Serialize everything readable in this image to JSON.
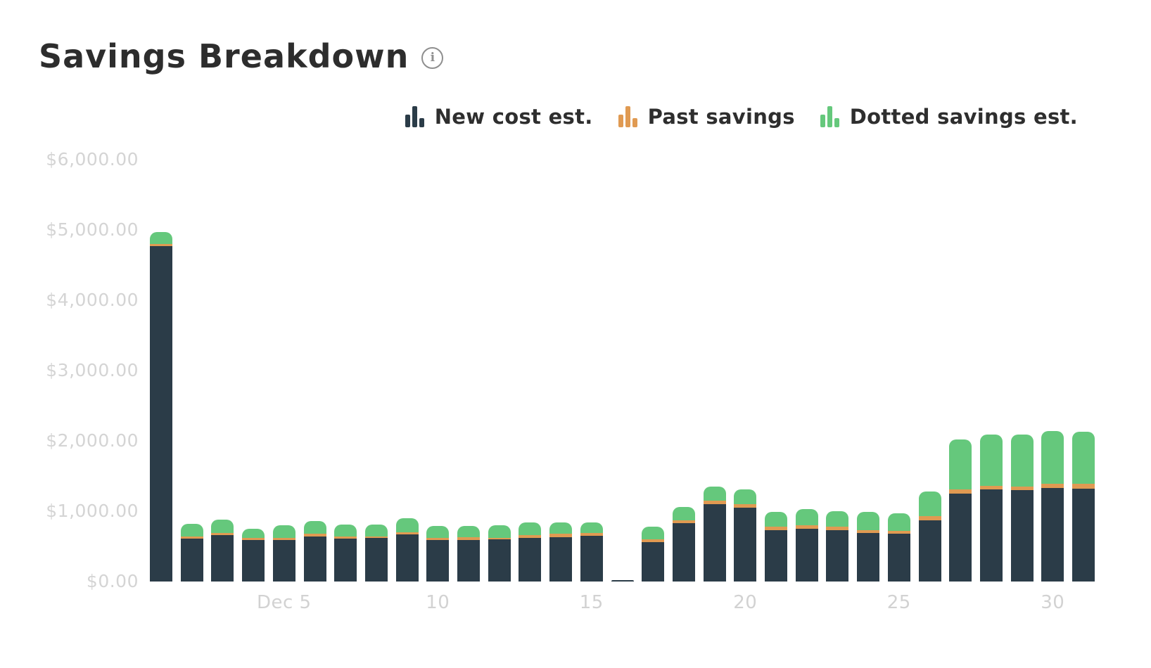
{
  "header": {
    "title": "Savings Breakdown",
    "info_glyph": "i"
  },
  "legend": {
    "items": [
      "New cost est.",
      "Past savings",
      "Dotted savings est."
    ]
  },
  "chart_data": {
    "type": "bar",
    "stacked": true,
    "title": "Savings Breakdown",
    "xlabel": "",
    "ylabel": "",
    "categories": [
      1,
      2,
      3,
      4,
      5,
      6,
      7,
      8,
      9,
      10,
      11,
      12,
      13,
      14,
      15,
      16,
      17,
      18,
      19,
      20,
      21,
      22,
      23,
      24,
      25,
      26,
      27,
      28,
      29,
      30,
      31
    ],
    "month": "Dec",
    "series": [
      {
        "name": "New cost est.",
        "color": "#2b3c48",
        "values": [
          4770,
          610,
          660,
          590,
          590,
          640,
          610,
          620,
          670,
          590,
          590,
          600,
          620,
          630,
          650,
          25,
          560,
          830,
          1100,
          1050,
          730,
          750,
          730,
          690,
          680,
          870,
          1250,
          1310,
          1300,
          1330,
          1320
        ]
      },
      {
        "name": "Past savings",
        "color": "#e09a52",
        "values": [
          30,
          30,
          30,
          30,
          30,
          40,
          30,
          20,
          30,
          30,
          40,
          20,
          40,
          50,
          40,
          0,
          40,
          40,
          50,
          50,
          50,
          50,
          50,
          40,
          40,
          60,
          60,
          50,
          50,
          60,
          70
        ]
      },
      {
        "name": "Dotted savings est.",
        "color": "#65c87c",
        "values": [
          170,
          180,
          190,
          130,
          180,
          180,
          170,
          170,
          200,
          170,
          160,
          180,
          180,
          160,
          150,
          0,
          180,
          190,
          200,
          210,
          210,
          230,
          220,
          260,
          250,
          350,
          710,
          730,
          740,
          750,
          740
        ]
      }
    ],
    "x_ticks": [
      {
        "day": 5,
        "label": "Dec 5"
      },
      {
        "day": 10,
        "label": "10"
      },
      {
        "day": 15,
        "label": "15"
      },
      {
        "day": 20,
        "label": "20"
      },
      {
        "day": 25,
        "label": "25"
      },
      {
        "day": 30,
        "label": "30"
      }
    ],
    "y_tick_labels": [
      "$6,000.00",
      "$5,000.00",
      "$4,000.00",
      "$3,000.00",
      "$2,000.00",
      "$1,000.00",
      "$0.00"
    ],
    "ylim": [
      0,
      6000
    ],
    "grid": false,
    "legend_position": "top-right"
  },
  "colors": {
    "title_text": "#2d2d2d",
    "legend_text": "#2e2e2e",
    "axis_text": "#d4d4d4",
    "background": "#ffffff"
  }
}
